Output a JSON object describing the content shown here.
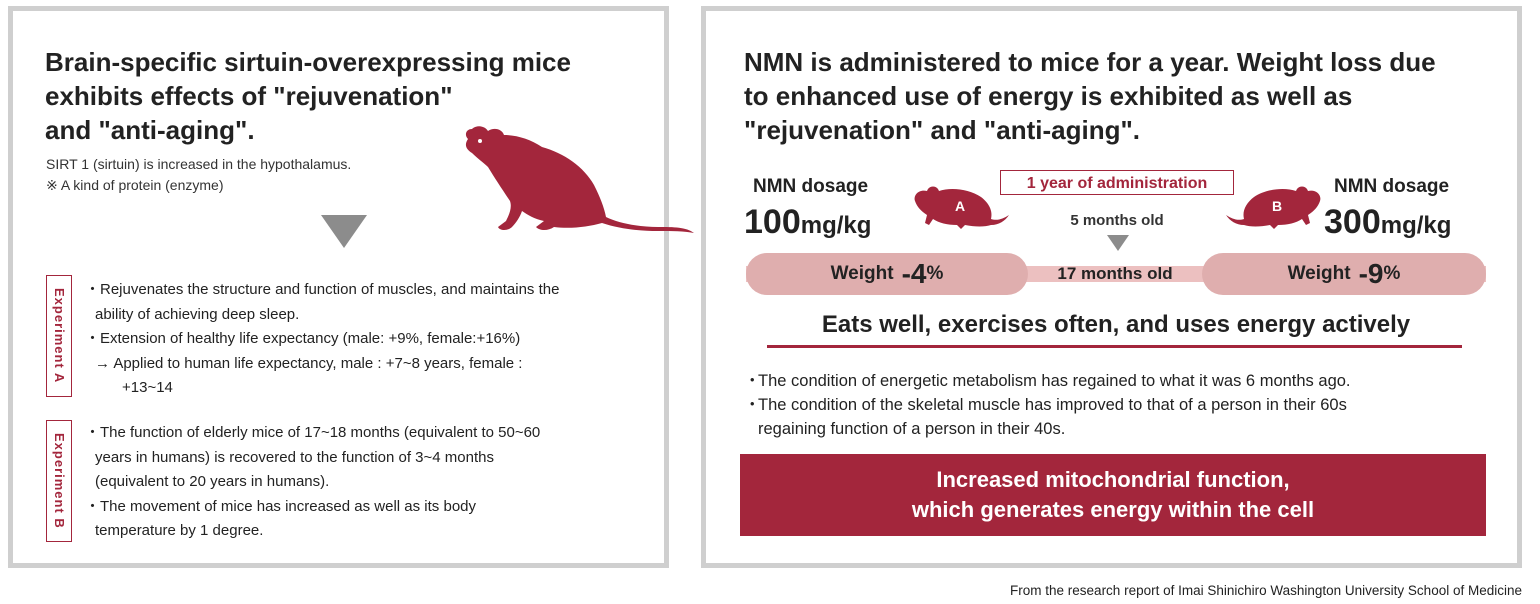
{
  "left": {
    "title_lines": [
      "Brain-specific sirtuin-overexpressing mice",
      "exhibits effects of \"rejuvenation\"",
      "and \"anti-aging\"."
    ],
    "note1": "SIRT 1 (sirtuin) is increased in the hypothalamus.",
    "note2": "※ A kind of protein (enzyme)",
    "experiment_a": {
      "label": "Experiment A",
      "lines": [
        "・Rejuvenates the structure and function of muscles, and maintains the",
        "ability of achieving deep sleep.",
        "・Extension of healthy life expectancy (male: +9%, female:+16%)",
        "→ Applied to human life expectancy, male : +7~8 years, female :",
        "+13~14"
      ]
    },
    "experiment_b": {
      "label": "Experiment B",
      "lines": [
        "・The function of elderly mice of 17~18 months (equivalent to 50~60",
        "years in humans) is recovered to the function of 3~4 months",
        "(equivalent to 20 years in humans).",
        "・The movement of mice has increased as well as its body",
        "temperature by 1 degree."
      ]
    }
  },
  "right": {
    "title_lines": [
      "NMN is administered to mice for a year. Weight loss due",
      "to enhanced use of energy is exhibited as well as",
      "\"rejuvenation\" and \"anti-aging\"."
    ],
    "dose_a": {
      "label": "NMN dosage",
      "value": "100",
      "unit": "mg/kg",
      "mouse_letter": "A",
      "weight_label": "Weight",
      "weight_value": "-4",
      "weight_unit": "%"
    },
    "dose_b": {
      "label": "NMN dosage",
      "value": "300",
      "unit": "mg/kg",
      "mouse_letter": "B",
      "weight_label": "Weight",
      "weight_value": "-9",
      "weight_unit": "%"
    },
    "administration": "1 year of administration",
    "age_start": "5 months old",
    "age_end": "17 months old",
    "headline": "Eats well, exercises often, and uses energy actively",
    "bullet1": "The condition of energetic metabolism has regained to what it was 6 months ago.",
    "bullet2_line1": "The condition of the skeletal muscle has improved to that of a person in their 60s",
    "bullet2_line2": "regaining function of a person in their 40s.",
    "bullet_mark": "・",
    "conclusion_line1": "Increased mitochondrial function,",
    "conclusion_line2": "which generates energy within the cell"
  },
  "source": "From the research report of Imai Shinichiro Washington University School of Medicine",
  "colors": {
    "accent": "#a3263c",
    "pill": "#dfaeae",
    "border": "#cfcfcf",
    "triangle": "#8c8c8c"
  }
}
